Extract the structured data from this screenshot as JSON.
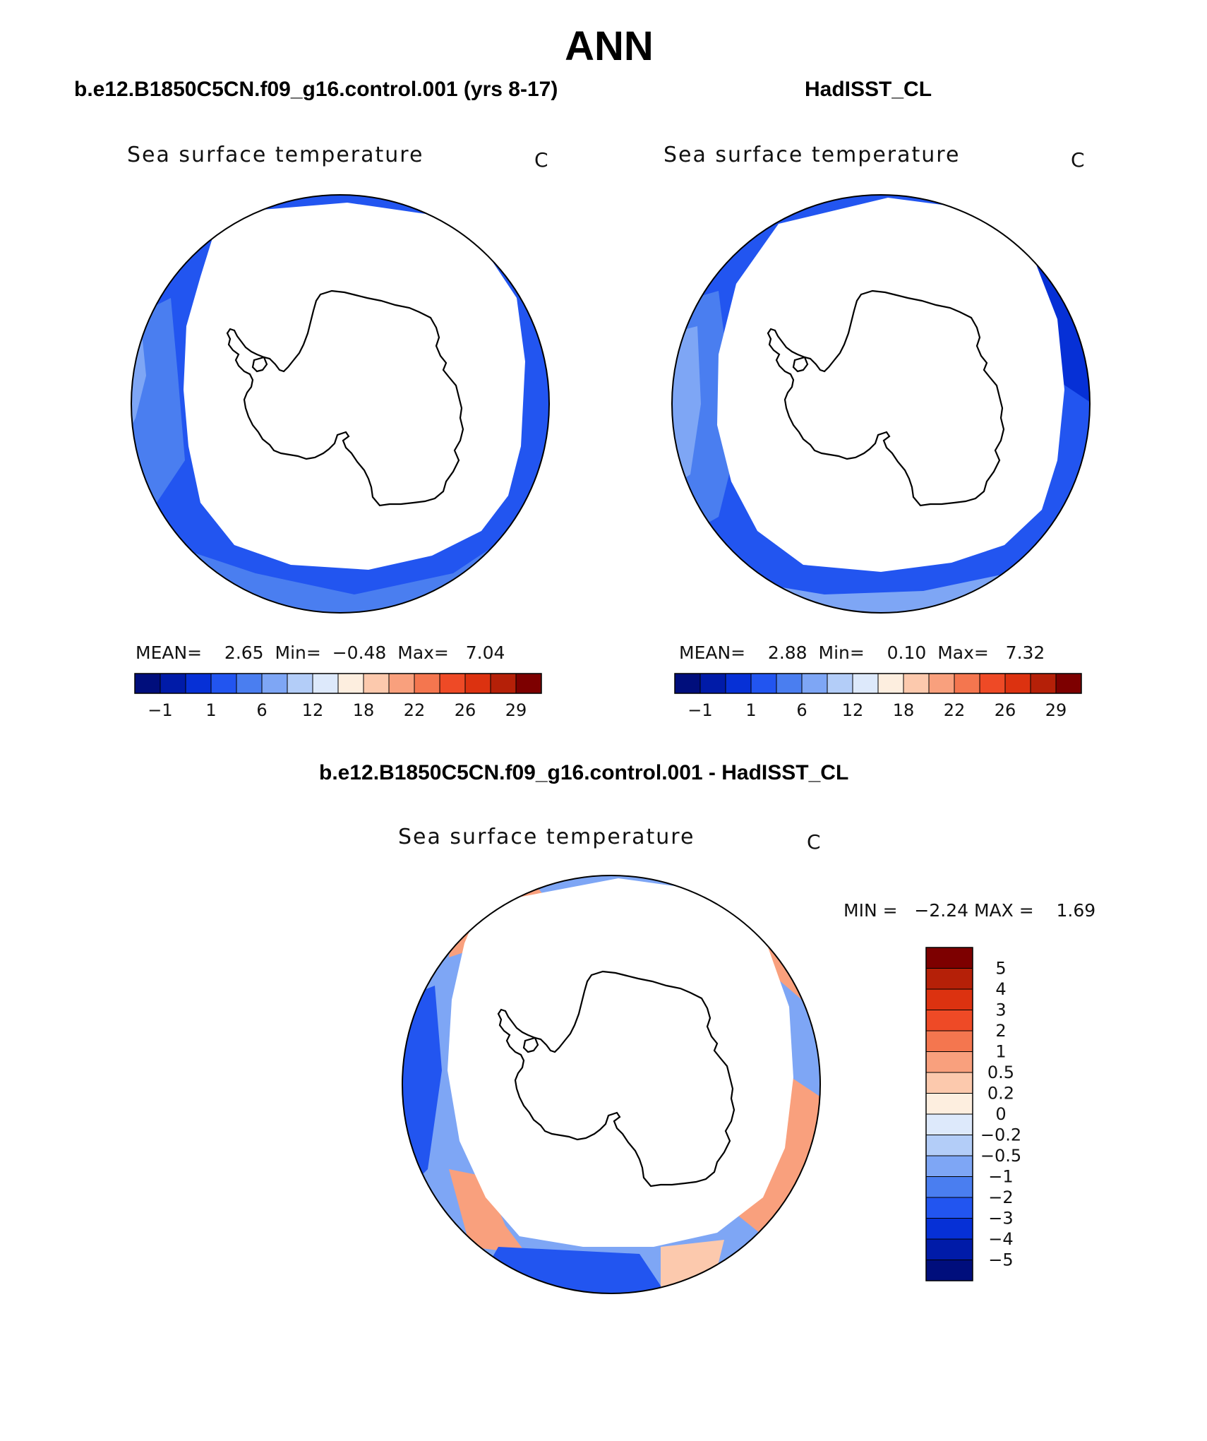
{
  "page_title": "ANN",
  "panels": [
    {
      "case_title": "b.e12.B1850C5CN.f09_g16.control.001 (yrs 8-17)",
      "variable": "Sea surface temperature",
      "units": "C",
      "stats": {
        "mean_label": "MEAN=",
        "mean": "2.65",
        "min_label": "Min=",
        "min": "−0.48",
        "max_label": "Max=",
        "max": "7.04"
      }
    },
    {
      "case_title": "HadISST_CL",
      "variable": "Sea surface temperature",
      "units": "C",
      "stats": {
        "mean_label": "MEAN=",
        "mean": "2.88",
        "min_label": "Min=",
        "min": "0.10",
        "max_label": "Max=",
        "max": "7.32"
      }
    }
  ],
  "diff_panel": {
    "case_title": "b.e12.B1850C5CN.f09_g16.control.001 - HadISST_CL",
    "variable": "Sea surface temperature",
    "units": "C",
    "stats": {
      "min_label": "MIN =",
      "min": "−2.24",
      "max_label": "MAX =",
      "max": "1.69"
    }
  },
  "colorbar_abs": {
    "colors": [
      "#000e7c",
      "#001ba8",
      "#0630d6",
      "#2255f0",
      "#4a7ef0",
      "#7ea6f5",
      "#b3cdf8",
      "#dde9fb",
      "#fdeedf",
      "#fcc9ad",
      "#f9a07d",
      "#f4764f",
      "#ee4a26",
      "#dc3210",
      "#b52008",
      "#7d0000"
    ],
    "tick_labels": [
      "−1",
      "1",
      "6",
      "12",
      "18",
      "22",
      "26",
      "29"
    ]
  },
  "colorbar_diff": {
    "colors": [
      "#7d0000",
      "#b52008",
      "#dc3210",
      "#ee4a26",
      "#f4764f",
      "#f9a07d",
      "#fcc9ad",
      "#fdeedf",
      "#dde9fb",
      "#b3cdf8",
      "#7ea6f5",
      "#4a7ef0",
      "#2255f0",
      "#0630d6",
      "#001ba8",
      "#000e7c"
    ],
    "tick_labels": [
      "5",
      "4",
      "3",
      "2",
      "1",
      "0.5",
      "0.2",
      "0",
      "−0.2",
      "−0.5",
      "−1",
      "−2",
      "−3",
      "−4",
      "−5"
    ]
  }
}
